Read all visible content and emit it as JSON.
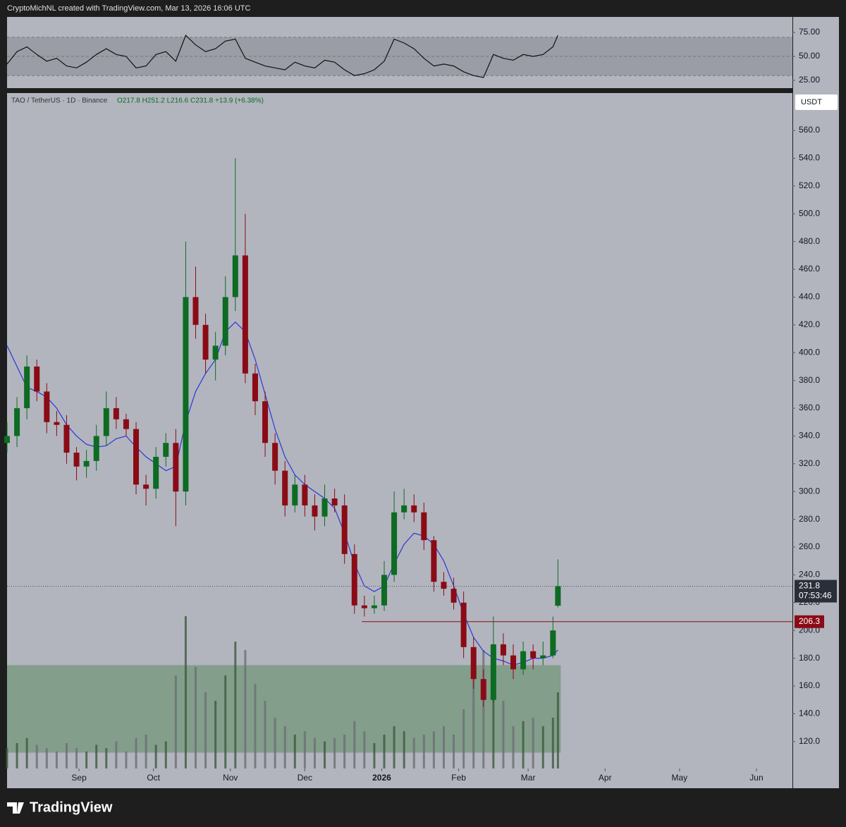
{
  "header": "CryptoMichNL created with TradingView.com, Mar 13, 2026 16:06 UTC",
  "footer": "TradingView",
  "chart_data": {
    "type": "candlestick",
    "symbol": "TAO / TetherUS · 1D · Binance",
    "ohlc_text": "O217.8 H251.2 L216.6 C231.8 +13.9 (+6.38%)",
    "currency": "USDT",
    "up_color": "#0d6b22",
    "down_color": "#8a0b16",
    "ma_color": "#2b36d9",
    "x": [
      0,
      4,
      8,
      12,
      16,
      20,
      24,
      28,
      32,
      36,
      40,
      44,
      48,
      52,
      56,
      60,
      64,
      68,
      72,
      76,
      80,
      84,
      88,
      92,
      96,
      100,
      104,
      108,
      112,
      116,
      120,
      124,
      128,
      132,
      136,
      140,
      144,
      148,
      152,
      156,
      160,
      164,
      168,
      172,
      176,
      180,
      184,
      188,
      192,
      196,
      200,
      204,
      208,
      212,
      216,
      220,
      222
    ],
    "open": [
      335,
      340,
      360,
      390,
      372,
      350,
      348,
      328,
      318,
      322,
      340,
      360,
      352,
      345,
      305,
      302,
      325,
      335,
      300,
      440,
      420,
      395,
      405,
      440,
      470,
      385,
      365,
      335,
      315,
      290,
      305,
      290,
      282,
      295,
      290,
      255,
      218,
      216,
      218,
      240,
      285,
      290,
      285,
      265,
      235,
      230,
      220,
      188,
      165,
      150,
      190,
      182,
      172,
      185,
      180,
      182,
      217.8
    ],
    "high": [
      350,
      368,
      398,
      395,
      378,
      358,
      355,
      332,
      330,
      348,
      372,
      368,
      356,
      350,
      312,
      332,
      342,
      345,
      480,
      462,
      428,
      415,
      455,
      540,
      500,
      392,
      372,
      342,
      322,
      312,
      312,
      298,
      305,
      302,
      298,
      262,
      225,
      225,
      250,
      300,
      302,
      298,
      292,
      268,
      242,
      238,
      228,
      195,
      172,
      210,
      198,
      190,
      192,
      190,
      192,
      210,
      251.2
    ],
    "low": [
      328,
      332,
      352,
      365,
      342,
      340,
      320,
      308,
      310,
      315,
      333,
      345,
      340,
      298,
      290,
      295,
      318,
      275,
      290,
      410,
      385,
      380,
      398,
      430,
      378,
      355,
      325,
      305,
      282,
      285,
      282,
      272,
      275,
      285,
      248,
      212,
      210,
      212,
      214,
      235,
      280,
      278,
      258,
      228,
      225,
      215,
      180,
      158,
      145,
      148,
      175,
      165,
      168,
      172,
      175,
      180,
      216.6
    ],
    "close": [
      340,
      360,
      390,
      372,
      350,
      348,
      328,
      318,
      322,
      340,
      360,
      352,
      345,
      305,
      302,
      325,
      335,
      300,
      440,
      420,
      395,
      405,
      440,
      470,
      385,
      365,
      335,
      315,
      290,
      305,
      290,
      282,
      295,
      290,
      255,
      218,
      216,
      218,
      240,
      285,
      290,
      285,
      265,
      235,
      230,
      220,
      188,
      165,
      150,
      190,
      182,
      172,
      185,
      180,
      182,
      200,
      231.8
    ],
    "ma": [
      405,
      390,
      375,
      372,
      368,
      360,
      348,
      340,
      334,
      332,
      333,
      338,
      340,
      332,
      325,
      320,
      315,
      318,
      350,
      372,
      385,
      395,
      415,
      422,
      415,
      395,
      370,
      345,
      325,
      312,
      305,
      300,
      295,
      288,
      270,
      248,
      232,
      228,
      232,
      248,
      262,
      270,
      268,
      262,
      250,
      232,
      212,
      195,
      185,
      180,
      178,
      175,
      177,
      180,
      180,
      182,
      186
    ],
    "volume": [
      12,
      15,
      18,
      14,
      12,
      10,
      15,
      12,
      10,
      14,
      12,
      16,
      10,
      18,
      20,
      14,
      16,
      55,
      90,
      60,
      45,
      40,
      55,
      75,
      70,
      50,
      40,
      30,
      25,
      20,
      22,
      18,
      16,
      18,
      20,
      28,
      22,
      15,
      20,
      25,
      22,
      18,
      20,
      22,
      25,
      20,
      35,
      55,
      70,
      60,
      40,
      25,
      28,
      30,
      25,
      30,
      45
    ],
    "vlim": [
      0,
      100
    ],
    "rsi": [
      42,
      55,
      60,
      52,
      45,
      48,
      40,
      38,
      44,
      52,
      58,
      52,
      50,
      38,
      40,
      52,
      55,
      45,
      72,
      62,
      55,
      58,
      66,
      68,
      48,
      44,
      40,
      38,
      36,
      44,
      40,
      38,
      46,
      44,
      36,
      30,
      32,
      36,
      45,
      68,
      64,
      58,
      48,
      40,
      42,
      40,
      34,
      30,
      28,
      52,
      48,
      46,
      52,
      50,
      52,
      60,
      72
    ],
    "rsi_lim": [
      16.9,
      91.2
    ],
    "rsi_bands": [
      30,
      50,
      70
    ],
    "rsi_ticks": [
      {
        "value": 75,
        "label": "75.00"
      },
      {
        "value": 50,
        "label": "50.00"
      },
      {
        "value": 25,
        "label": "25.00"
      }
    ],
    "xlim": [
      0,
      316.5
    ],
    "xticks": [
      {
        "value": 29,
        "label": "Sep"
      },
      {
        "value": 59,
        "label": "Oct"
      },
      {
        "value": 90,
        "label": "Nov"
      },
      {
        "value": 120,
        "label": "Dec"
      },
      {
        "value": 151,
        "label": "2026"
      },
      {
        "value": 182,
        "label": "Feb"
      },
      {
        "value": 210,
        "label": "Mar"
      },
      {
        "value": 241,
        "label": "Apr"
      },
      {
        "value": 271,
        "label": "May"
      },
      {
        "value": 302,
        "label": "Jun"
      }
    ],
    "ylim": [
      100.6,
      586.9
    ],
    "yticks": [
      {
        "value": 120,
        "label": "120.0"
      },
      {
        "value": 140,
        "label": "140.0"
      },
      {
        "value": 160,
        "label": "160.0"
      },
      {
        "value": 180,
        "label": "180.0"
      },
      {
        "value": 200,
        "label": "200.0"
      },
      {
        "value": 220,
        "label": "220.0"
      },
      {
        "value": 240,
        "label": "240.0"
      },
      {
        "value": 260,
        "label": "260.0"
      },
      {
        "value": 280,
        "label": "280.0"
      },
      {
        "value": 300,
        "label": "300.0"
      },
      {
        "value": 320,
        "label": "320.0"
      },
      {
        "value": 340,
        "label": "340.0"
      },
      {
        "value": 360,
        "label": "360.0"
      },
      {
        "value": 380,
        "label": "380.0"
      },
      {
        "value": 400,
        "label": "400.0"
      },
      {
        "value": 420,
        "label": "420.0"
      },
      {
        "value": 440,
        "label": "440.0"
      },
      {
        "value": 460,
        "label": "460.0"
      },
      {
        "value": 480,
        "label": "480.0"
      },
      {
        "value": 500,
        "label": "500.0"
      },
      {
        "value": 520,
        "label": "520.0"
      },
      {
        "value": 540,
        "label": "540.0"
      },
      {
        "value": 560,
        "label": "560.0"
      }
    ],
    "support_zone": [
      112,
      175
    ],
    "level": {
      "value": 206.3,
      "label": "206.3",
      "start": 143
    },
    "last_price": {
      "value": 231.8,
      "label": "231.8"
    },
    "countdown": "07:53:46"
  }
}
